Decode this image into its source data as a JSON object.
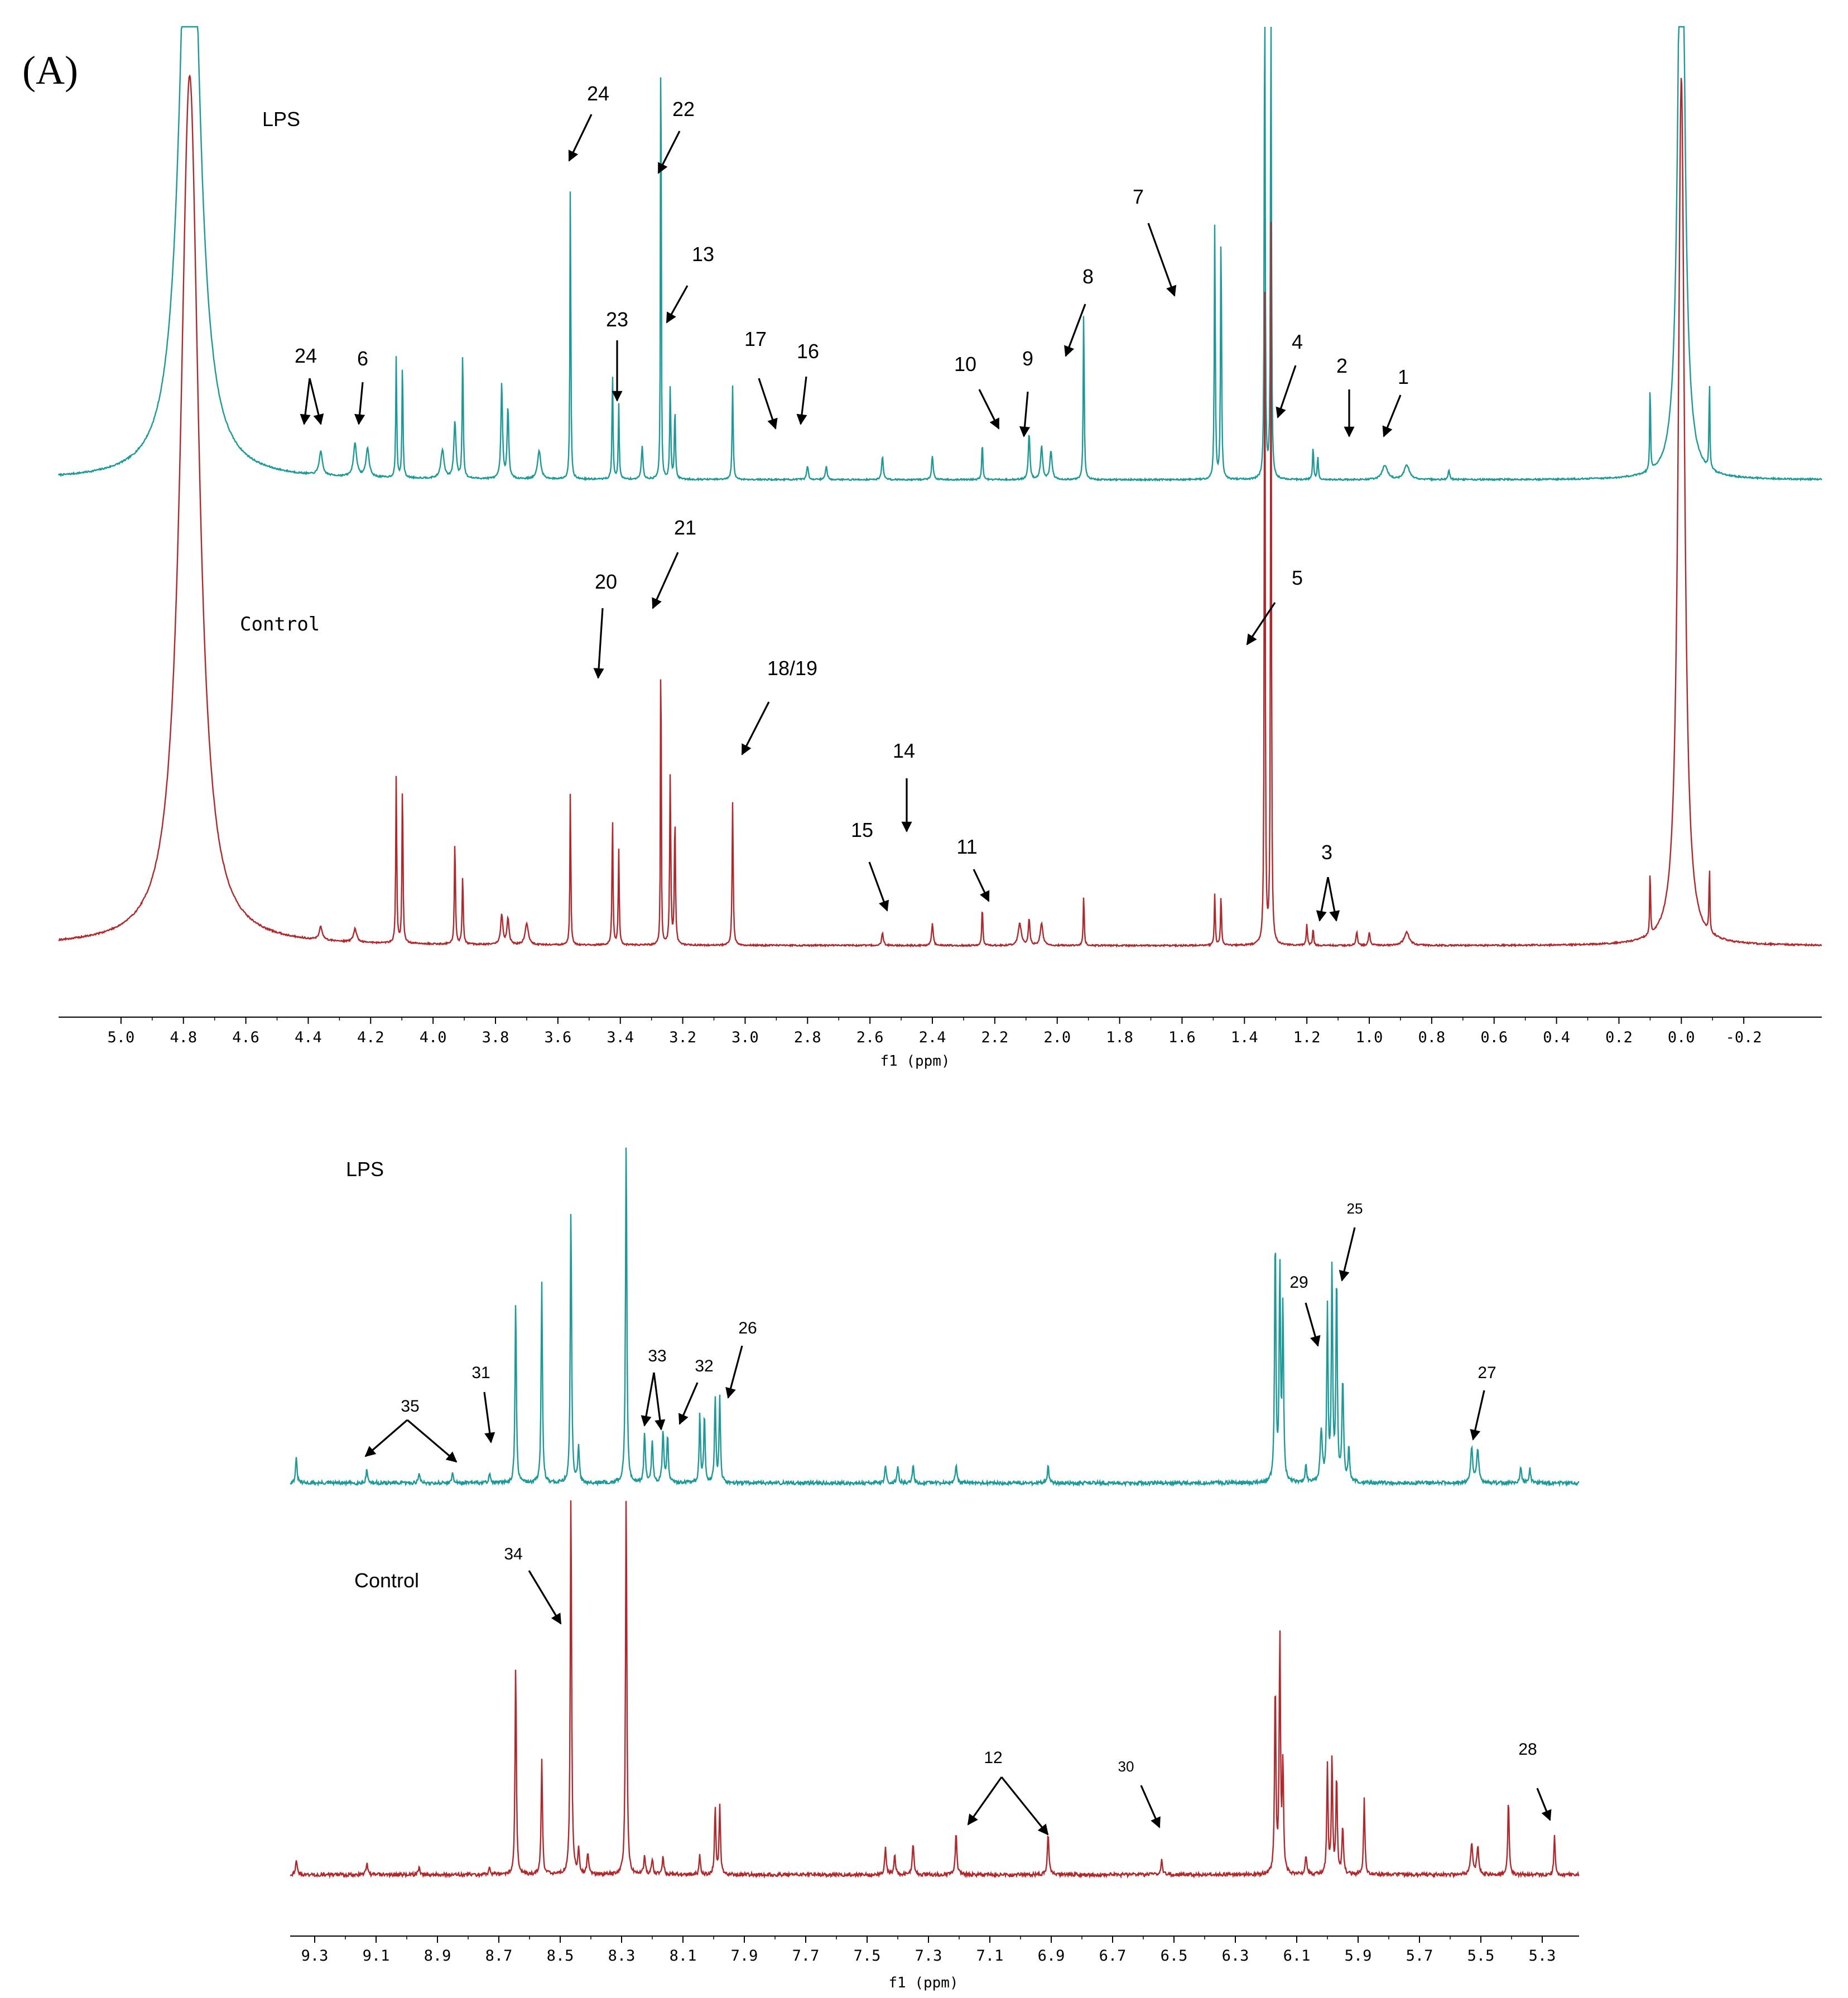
{
  "panel_label": "(A)",
  "colors": {
    "lps": "#1a9a98",
    "control": "#b3262a",
    "axis": "#000000"
  },
  "chart_data": [
    {
      "type": "line",
      "id": "aliphatic",
      "title": "",
      "xlabel": "f1 (ppm)",
      "ylabel": "",
      "xlim": [
        5.2,
        -0.45
      ],
      "x_reversed": true,
      "ticks": [
        5.0,
        4.8,
        4.6,
        4.4,
        4.2,
        4.0,
        3.8,
        3.6,
        3.4,
        3.2,
        3.0,
        2.8,
        2.6,
        2.4,
        2.2,
        2.0,
        1.8,
        1.6,
        1.4,
        1.2,
        1.0,
        0.8,
        0.6,
        0.4,
        0.2,
        0.0,
        -0.2
      ],
      "tick_labels": [
        "5.0",
        "4.8",
        "4.6",
        "4.4",
        "4.2",
        "4.0",
        "3.8",
        "3.6",
        "3.4",
        "3.2",
        "3.0",
        "2.8",
        "2.6",
        "2.4",
        "2.2",
        "2.0",
        "1.8",
        "1.6",
        "1.4",
        "1.2",
        "1.0",
        "0.8",
        "0.6",
        "0.4",
        "0.2",
        "0.0",
        "-0.2"
      ],
      "series": [
        {
          "name": "LPS",
          "label": "LPS",
          "peaks": [
            [
              4.78,
              1.5,
              0.035
            ],
            [
              4.36,
              0.05,
              0.006
            ],
            [
              4.25,
              0.07,
              0.006
            ],
            [
              4.21,
              0.06,
              0.006
            ],
            [
              4.118,
              0.26,
              0.0018
            ],
            [
              4.098,
              0.25,
              0.0018
            ],
            [
              3.97,
              0.06,
              0.006
            ],
            [
              3.93,
              0.12,
              0.004
            ],
            [
              3.905,
              0.27,
              0.002
            ],
            [
              3.78,
              0.2,
              0.003
            ],
            [
              3.76,
              0.15,
              0.003
            ],
            [
              3.66,
              0.06,
              0.006
            ],
            [
              3.56,
              0.65,
              0.0016
            ],
            [
              3.425,
              0.23,
              0.0018
            ],
            [
              3.405,
              0.16,
              0.0018
            ],
            [
              3.33,
              0.07,
              0.003
            ],
            [
              3.27,
              1.2,
              0.0012
            ],
            [
              3.24,
              0.2,
              0.002
            ],
            [
              3.225,
              0.15,
              0.002
            ],
            [
              3.04,
              0.2,
              0.002
            ],
            [
              2.8,
              0.03,
              0.003
            ],
            [
              2.74,
              0.03,
              0.003
            ],
            [
              2.56,
              0.05,
              0.003
            ],
            [
              2.4,
              0.05,
              0.003
            ],
            [
              2.24,
              0.08,
              0.002
            ],
            [
              2.09,
              0.1,
              0.003
            ],
            [
              2.05,
              0.07,
              0.004
            ],
            [
              2.02,
              0.06,
              0.004
            ],
            [
              1.915,
              0.37,
              0.0018
            ],
            [
              1.495,
              0.55,
              0.0018
            ],
            [
              1.475,
              0.55,
              0.0018
            ],
            [
              1.335,
              1.2,
              0.0016
            ],
            [
              1.315,
              1.2,
              0.0016
            ],
            [
              1.18,
              0.07,
              0.002
            ],
            [
              1.165,
              0.05,
              0.002
            ],
            [
              0.95,
              0.03,
              0.01
            ],
            [
              0.88,
              0.03,
              0.01
            ],
            [
              0.745,
              0.02,
              0.003
            ],
            [
              0.1,
              0.2,
              0.0015
            ],
            [
              0.0,
              1.5,
              0.012
            ],
            [
              -0.09,
              0.2,
              0.0015
            ]
          ]
        },
        {
          "name": "Control",
          "label": "Control",
          "peaks": [
            [
              4.78,
              2.0,
              0.035
            ],
            [
              4.36,
              0.03,
              0.006
            ],
            [
              4.25,
              0.03,
              0.006
            ],
            [
              4.118,
              0.39,
              0.0018
            ],
            [
              4.098,
              0.38,
              0.0018
            ],
            [
              3.93,
              0.24,
              0.002
            ],
            [
              3.905,
              0.16,
              0.002
            ],
            [
              3.78,
              0.07,
              0.004
            ],
            [
              3.76,
              0.06,
              0.004
            ],
            [
              3.7,
              0.05,
              0.006
            ],
            [
              3.56,
              0.37,
              0.0016
            ],
            [
              3.425,
              0.3,
              0.0018
            ],
            [
              3.405,
              0.22,
              0.0018
            ],
            [
              3.27,
              0.86,
              0.0012
            ],
            [
              3.24,
              0.4,
              0.002
            ],
            [
              3.225,
              0.3,
              0.002
            ],
            [
              3.04,
              0.33,
              0.002
            ],
            [
              2.56,
              0.03,
              0.003
            ],
            [
              2.4,
              0.05,
              0.003
            ],
            [
              2.24,
              0.09,
              0.002
            ],
            [
              2.12,
              0.05,
              0.006
            ],
            [
              2.09,
              0.06,
              0.003
            ],
            [
              2.05,
              0.05,
              0.005
            ],
            [
              1.915,
              0.12,
              0.0018
            ],
            [
              1.495,
              0.12,
              0.0018
            ],
            [
              1.475,
              0.12,
              0.0018
            ],
            [
              1.335,
              1.7,
              0.0016
            ],
            [
              1.315,
              1.7,
              0.0016
            ],
            [
              1.2,
              0.05,
              0.002
            ],
            [
              1.18,
              0.04,
              0.002
            ],
            [
              1.04,
              0.03,
              0.003
            ],
            [
              1.0,
              0.03,
              0.003
            ],
            [
              0.88,
              0.03,
              0.01
            ],
            [
              0.1,
              0.16,
              0.0015
            ],
            [
              0.0,
              2.0,
              0.012
            ],
            [
              -0.09,
              0.16,
              0.0015
            ]
          ]
        }
      ],
      "annotations": [
        {
          "text": "24",
          "x": 3.47
        },
        {
          "text": "22",
          "x": 3.22
        },
        {
          "text": "13",
          "x": 3.2
        },
        {
          "text": "23",
          "x": 3.34
        },
        {
          "text": "17",
          "x": 2.83
        },
        {
          "text": "16",
          "x": 2.76
        },
        {
          "text": "10",
          "x": 2.1
        },
        {
          "text": "9",
          "x": 2.02
        },
        {
          "text": "8",
          "x": 1.89
        },
        {
          "text": "7",
          "x": 1.52
        },
        {
          "text": "4",
          "x": 1.2
        },
        {
          "text": "2",
          "x": 0.96
        },
        {
          "text": "1",
          "x": 0.84
        },
        {
          "text": "24",
          "x": 4.37
        },
        {
          "text": "6",
          "x": 4.19
        },
        {
          "text": "20",
          "x": 3.42
        },
        {
          "text": "21",
          "x": 3.25
        },
        {
          "text": "5",
          "x": 1.3
        },
        {
          "text": "18/19",
          "x": 2.97
        },
        {
          "text": "14",
          "x": 2.4
        },
        {
          "text": "15",
          "x": 2.46
        },
        {
          "text": "11",
          "x": 2.13
        },
        {
          "text": "3",
          "x": 1.02
        }
      ]
    },
    {
      "type": "line",
      "id": "aromatic",
      "title": "",
      "xlabel": "f1 (ppm)",
      "ylabel": "",
      "xlim": [
        9.38,
        5.18
      ],
      "x_reversed": true,
      "ticks": [
        9.3,
        9.1,
        8.9,
        8.7,
        8.5,
        8.3,
        8.1,
        7.9,
        7.7,
        7.5,
        7.3,
        7.1,
        6.9,
        6.7,
        6.5,
        6.3,
        6.1,
        5.9,
        5.7,
        5.5,
        5.3
      ],
      "tick_labels": [
        "9.3",
        "9.1",
        "8.9",
        "8.7",
        "8.5",
        "8.3",
        "8.1",
        "7.9",
        "7.7",
        "7.5",
        "7.3",
        "7.1",
        "6.9",
        "6.7",
        "6.5",
        "6.3",
        "6.1",
        "5.9",
        "5.7",
        "5.5",
        "5.3"
      ],
      "series": [
        {
          "name": "LPS",
          "label": "LPS",
          "peaks": [
            [
              9.36,
              0.07,
              0.003
            ],
            [
              9.13,
              0.04,
              0.003
            ],
            [
              8.96,
              0.03,
              0.003
            ],
            [
              8.85,
              0.03,
              0.003
            ],
            [
              8.73,
              0.03,
              0.003
            ],
            [
              8.645,
              0.53,
              0.0025
            ],
            [
              8.56,
              0.58,
              0.0025
            ],
            [
              8.465,
              0.8,
              0.0025
            ],
            [
              8.44,
              0.1,
              0.003
            ],
            [
              8.285,
              1.0,
              0.0025
            ],
            [
              8.225,
              0.14,
              0.003
            ],
            [
              8.2,
              0.12,
              0.003
            ],
            [
              8.165,
              0.15,
              0.003
            ],
            [
              8.15,
              0.13,
              0.003
            ],
            [
              8.045,
              0.2,
              0.0025
            ],
            [
              8.03,
              0.2,
              0.0025
            ],
            [
              7.995,
              0.25,
              0.0025
            ],
            [
              7.98,
              0.25,
              0.0025
            ],
            [
              7.44,
              0.05,
              0.003
            ],
            [
              7.4,
              0.05,
              0.003
            ],
            [
              7.35,
              0.05,
              0.003
            ],
            [
              7.21,
              0.05,
              0.003
            ],
            [
              6.91,
              0.05,
              0.003
            ],
            [
              6.17,
              0.72,
              0.0025
            ],
            [
              6.155,
              0.62,
              0.0025
            ],
            [
              6.145,
              0.5,
              0.0025
            ],
            [
              6.07,
              0.05,
              0.003
            ],
            [
              6.02,
              0.15,
              0.004
            ],
            [
              6.0,
              0.5,
              0.0025
            ],
            [
              5.985,
              0.62,
              0.0025
            ],
            [
              5.97,
              0.6,
              0.0025
            ],
            [
              5.95,
              0.3,
              0.003
            ],
            [
              5.93,
              0.1,
              0.003
            ],
            [
              5.53,
              0.1,
              0.004
            ],
            [
              5.51,
              0.1,
              0.004
            ],
            [
              5.37,
              0.05,
              0.003
            ],
            [
              5.34,
              0.04,
              0.003
            ]
          ]
        },
        {
          "name": "Control",
          "label": "Control",
          "peaks": [
            [
              9.36,
              0.04,
              0.003
            ],
            [
              9.13,
              0.03,
              0.003
            ],
            [
              8.96,
              0.02,
              0.003
            ],
            [
              8.73,
              0.02,
              0.003
            ],
            [
              8.645,
              0.55,
              0.0025
            ],
            [
              8.56,
              0.3,
              0.0025
            ],
            [
              8.465,
              1.0,
              0.0025
            ],
            [
              8.44,
              0.06,
              0.003
            ],
            [
              8.41,
              0.06,
              0.003
            ],
            [
              8.285,
              1.0,
              0.0025
            ],
            [
              8.225,
              0.05,
              0.003
            ],
            [
              8.2,
              0.04,
              0.003
            ],
            [
              8.165,
              0.05,
              0.003
            ],
            [
              8.045,
              0.05,
              0.0025
            ],
            [
              7.995,
              0.18,
              0.0025
            ],
            [
              7.98,
              0.18,
              0.0025
            ],
            [
              7.44,
              0.07,
              0.003
            ],
            [
              7.41,
              0.05,
              0.003
            ],
            [
              7.35,
              0.08,
              0.003
            ],
            [
              7.21,
              0.11,
              0.003
            ],
            [
              6.91,
              0.11,
              0.003
            ],
            [
              6.54,
              0.04,
              0.003
            ],
            [
              6.17,
              0.5,
              0.0025
            ],
            [
              6.155,
              0.62,
              0.0025
            ],
            [
              6.145,
              0.28,
              0.0025
            ],
            [
              6.07,
              0.05,
              0.003
            ],
            [
              6.0,
              0.28,
              0.0025
            ],
            [
              5.985,
              0.3,
              0.0025
            ],
            [
              5.97,
              0.26,
              0.0025
            ],
            [
              5.95,
              0.12,
              0.003
            ],
            [
              5.88,
              0.2,
              0.0025
            ],
            [
              5.53,
              0.08,
              0.004
            ],
            [
              5.51,
              0.07,
              0.004
            ],
            [
              5.41,
              0.2,
              0.0025
            ],
            [
              5.26,
              0.1,
              0.0025
            ]
          ]
        }
      ],
      "annotations": [
        {
          "text": "35",
          "x": 9.03
        },
        {
          "text": "31",
          "x": 8.75
        },
        {
          "text": "33",
          "x": 8.21
        },
        {
          "text": "32",
          "x": 8.15
        },
        {
          "text": "26",
          "x": 7.98
        },
        {
          "text": "29",
          "x": 6.0
        },
        {
          "text": "25",
          "x": 5.97
        },
        {
          "text": "27",
          "x": 5.52
        },
        {
          "text": "34",
          "x": 8.46
        },
        {
          "text": "12",
          "x": 7.07
        },
        {
          "text": "30",
          "x": 6.57
        },
        {
          "text": "28",
          "x": 5.27
        }
      ]
    }
  ]
}
